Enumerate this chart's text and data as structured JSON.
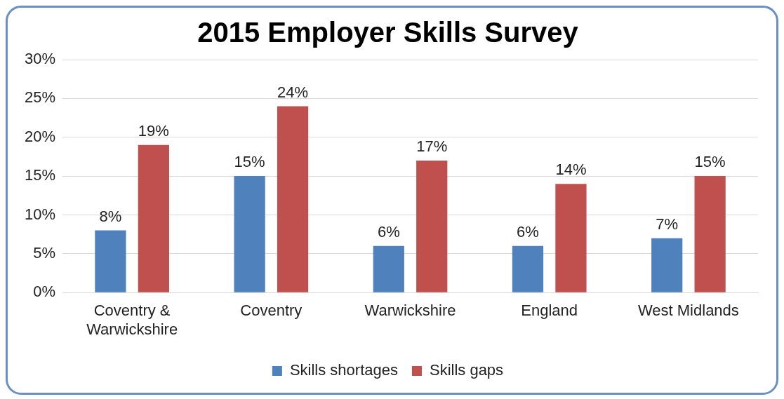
{
  "chart_data": {
    "type": "bar",
    "title": "2015 Employer Skills Survey",
    "categories": [
      "Coventry & Warwickshire",
      "Coventry",
      "Warwickshire",
      "England",
      "West Midlands"
    ],
    "series": [
      {
        "name": "Skills shortages",
        "color": "#4f81bd",
        "values": [
          8,
          15,
          6,
          6,
          7
        ],
        "value_labels": [
          "8%",
          "15%",
          "6%",
          "6%",
          "7%"
        ]
      },
      {
        "name": "Skills gaps",
        "color": "#c0504d",
        "values": [
          19,
          24,
          17,
          14,
          15
        ],
        "value_labels": [
          "19%",
          "24%",
          "17%",
          "14%",
          "15%"
        ]
      }
    ],
    "ylim": [
      0,
      30
    ],
    "yticks": [
      {
        "value": 0,
        "label": "0%"
      },
      {
        "value": 5,
        "label": "5%"
      },
      {
        "value": 10,
        "label": "10%"
      },
      {
        "value": 15,
        "label": "15%"
      },
      {
        "value": 20,
        "label": "20%"
      },
      {
        "value": 25,
        "label": "25%"
      },
      {
        "value": 30,
        "label": "30%"
      }
    ],
    "grid": "y",
    "legend": "bottom"
  }
}
